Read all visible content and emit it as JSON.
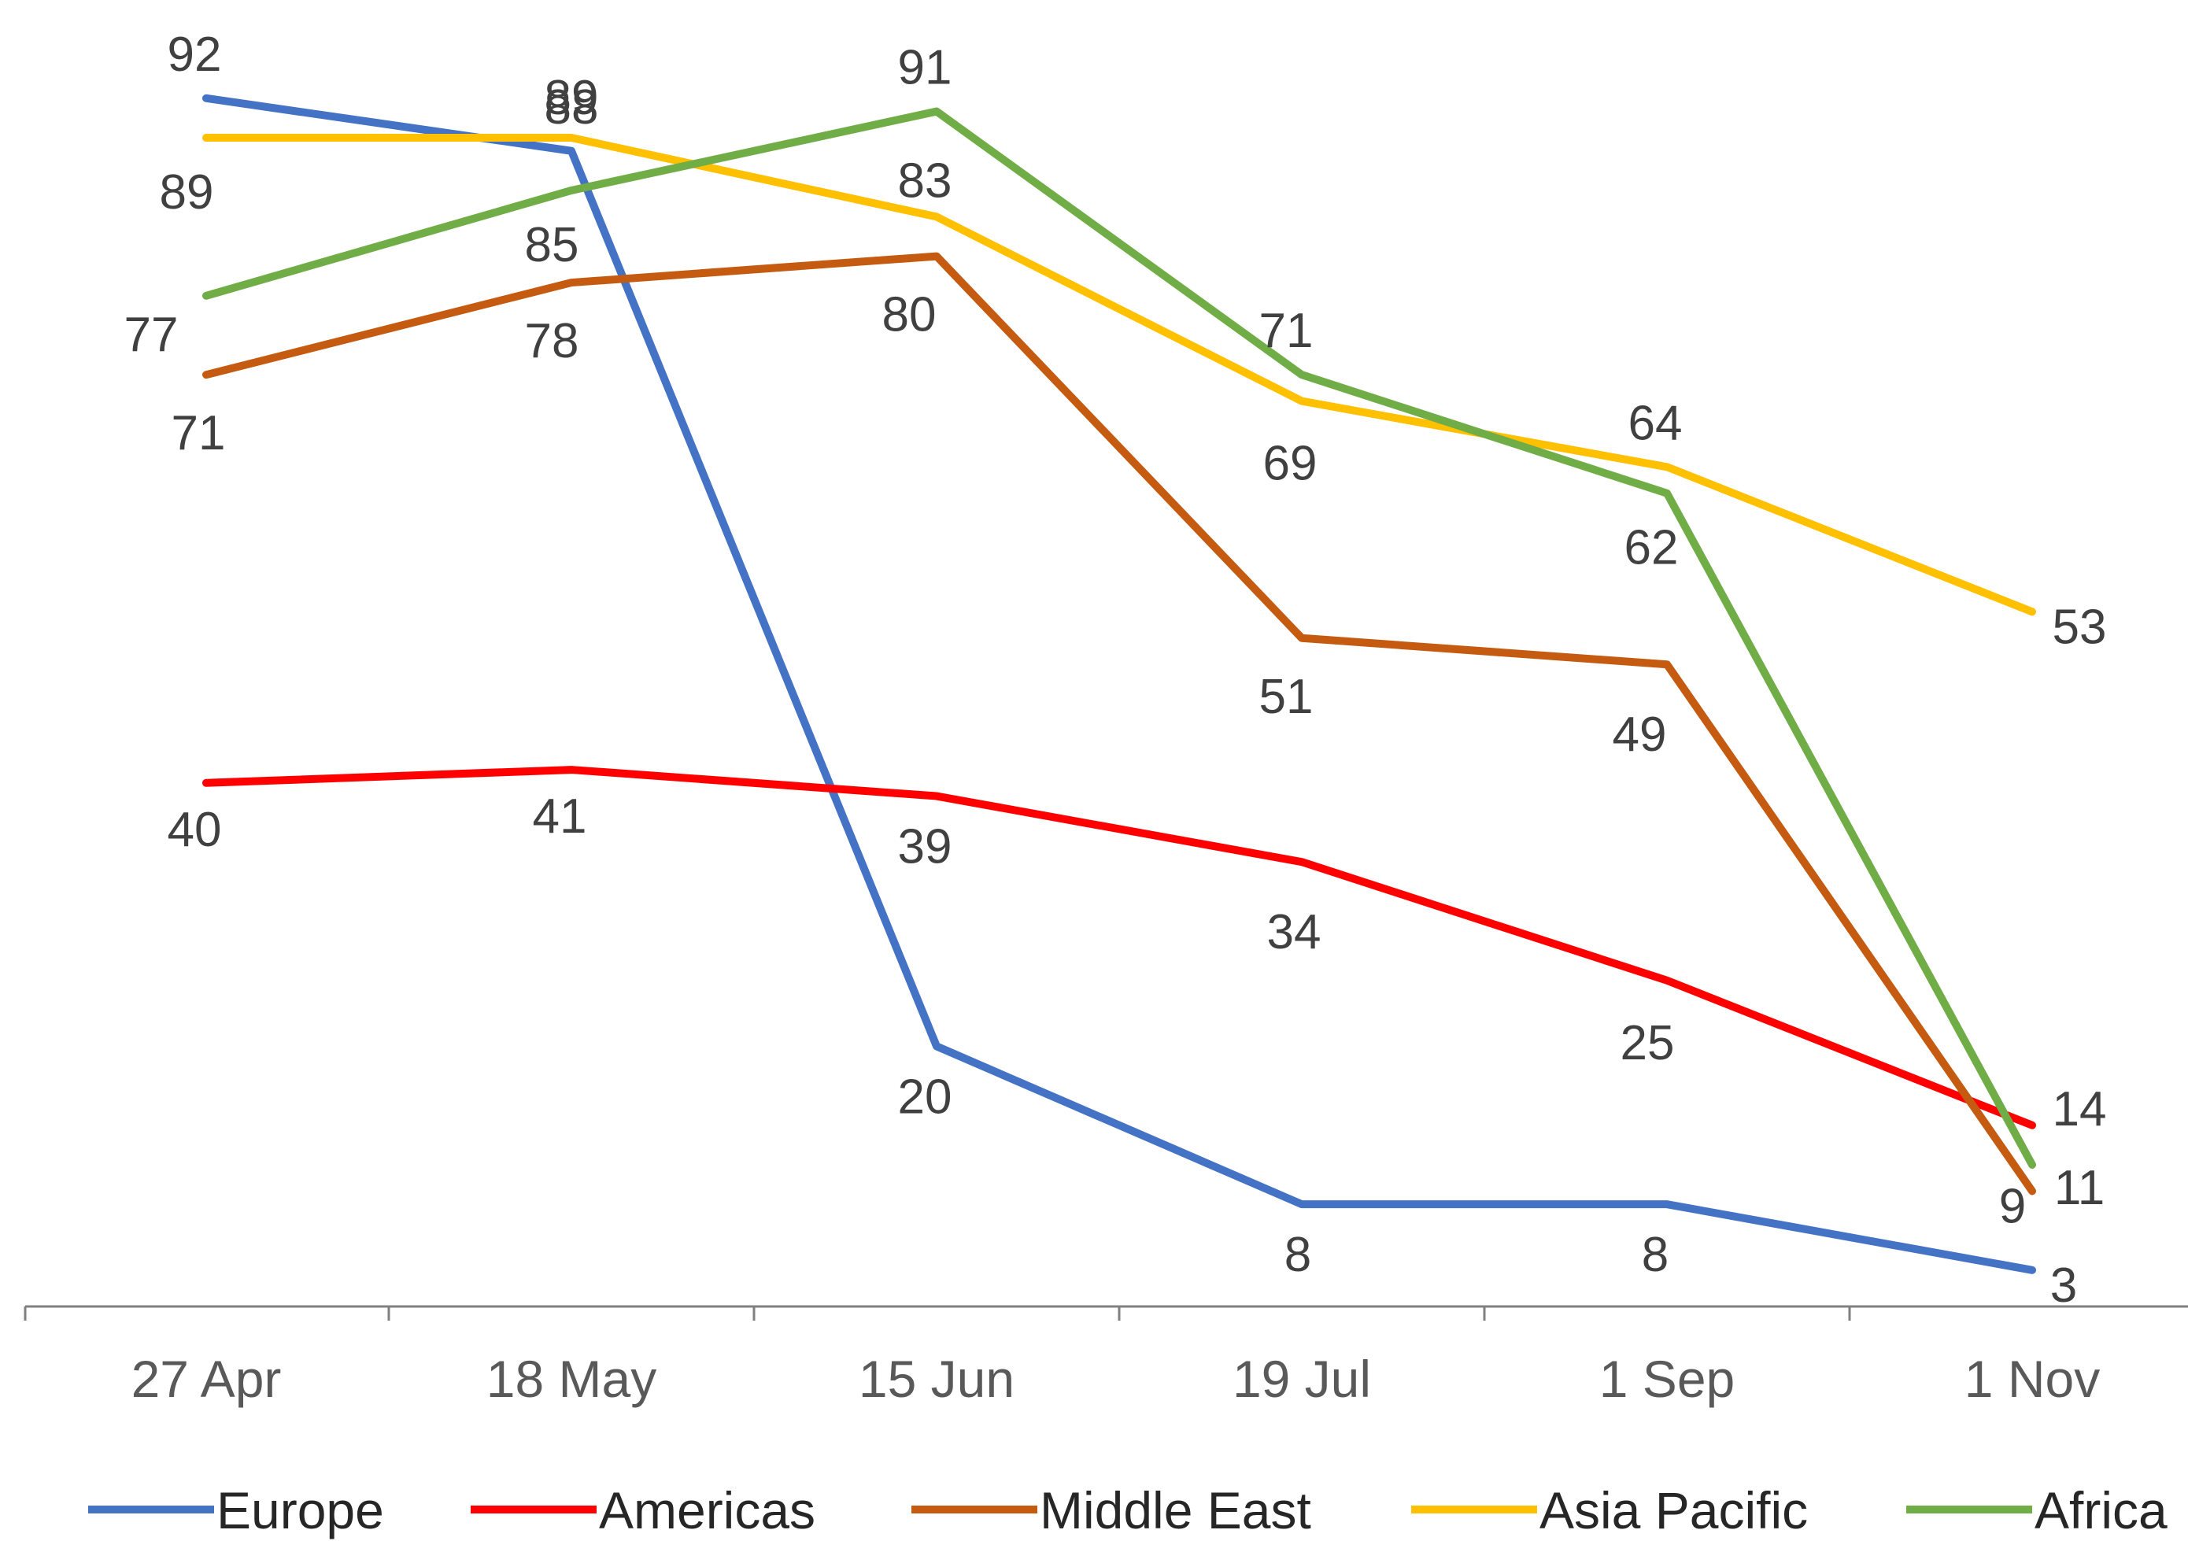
{
  "chart_data": {
    "type": "line",
    "title": "",
    "xlabel": "",
    "ylabel": "",
    "categories": [
      "27 Apr",
      "18 May",
      "15 Jun",
      "19 Jul",
      "1 Sep",
      "1 Nov"
    ],
    "ylim": [
      0,
      100
    ],
    "grid": false,
    "legend_position": "bottom",
    "series": [
      {
        "name": "Europe",
        "color": "#4472C4",
        "values": [
          92,
          88,
          20,
          8,
          8,
          3
        ]
      },
      {
        "name": "Americas",
        "color": "#FF0000",
        "values": [
          40,
          41,
          39,
          34,
          25,
          14
        ]
      },
      {
        "name": "Middle East",
        "color": "#C55A11",
        "values": [
          71,
          78,
          80,
          51,
          49,
          9
        ]
      },
      {
        "name": "Asia Pacific",
        "color": "#FFC000",
        "values": [
          89,
          89,
          83,
          69,
          64,
          53
        ]
      },
      {
        "name": "Africa",
        "color": "#70AD47",
        "values": [
          77,
          85,
          91,
          71,
          62,
          11
        ]
      }
    ]
  }
}
